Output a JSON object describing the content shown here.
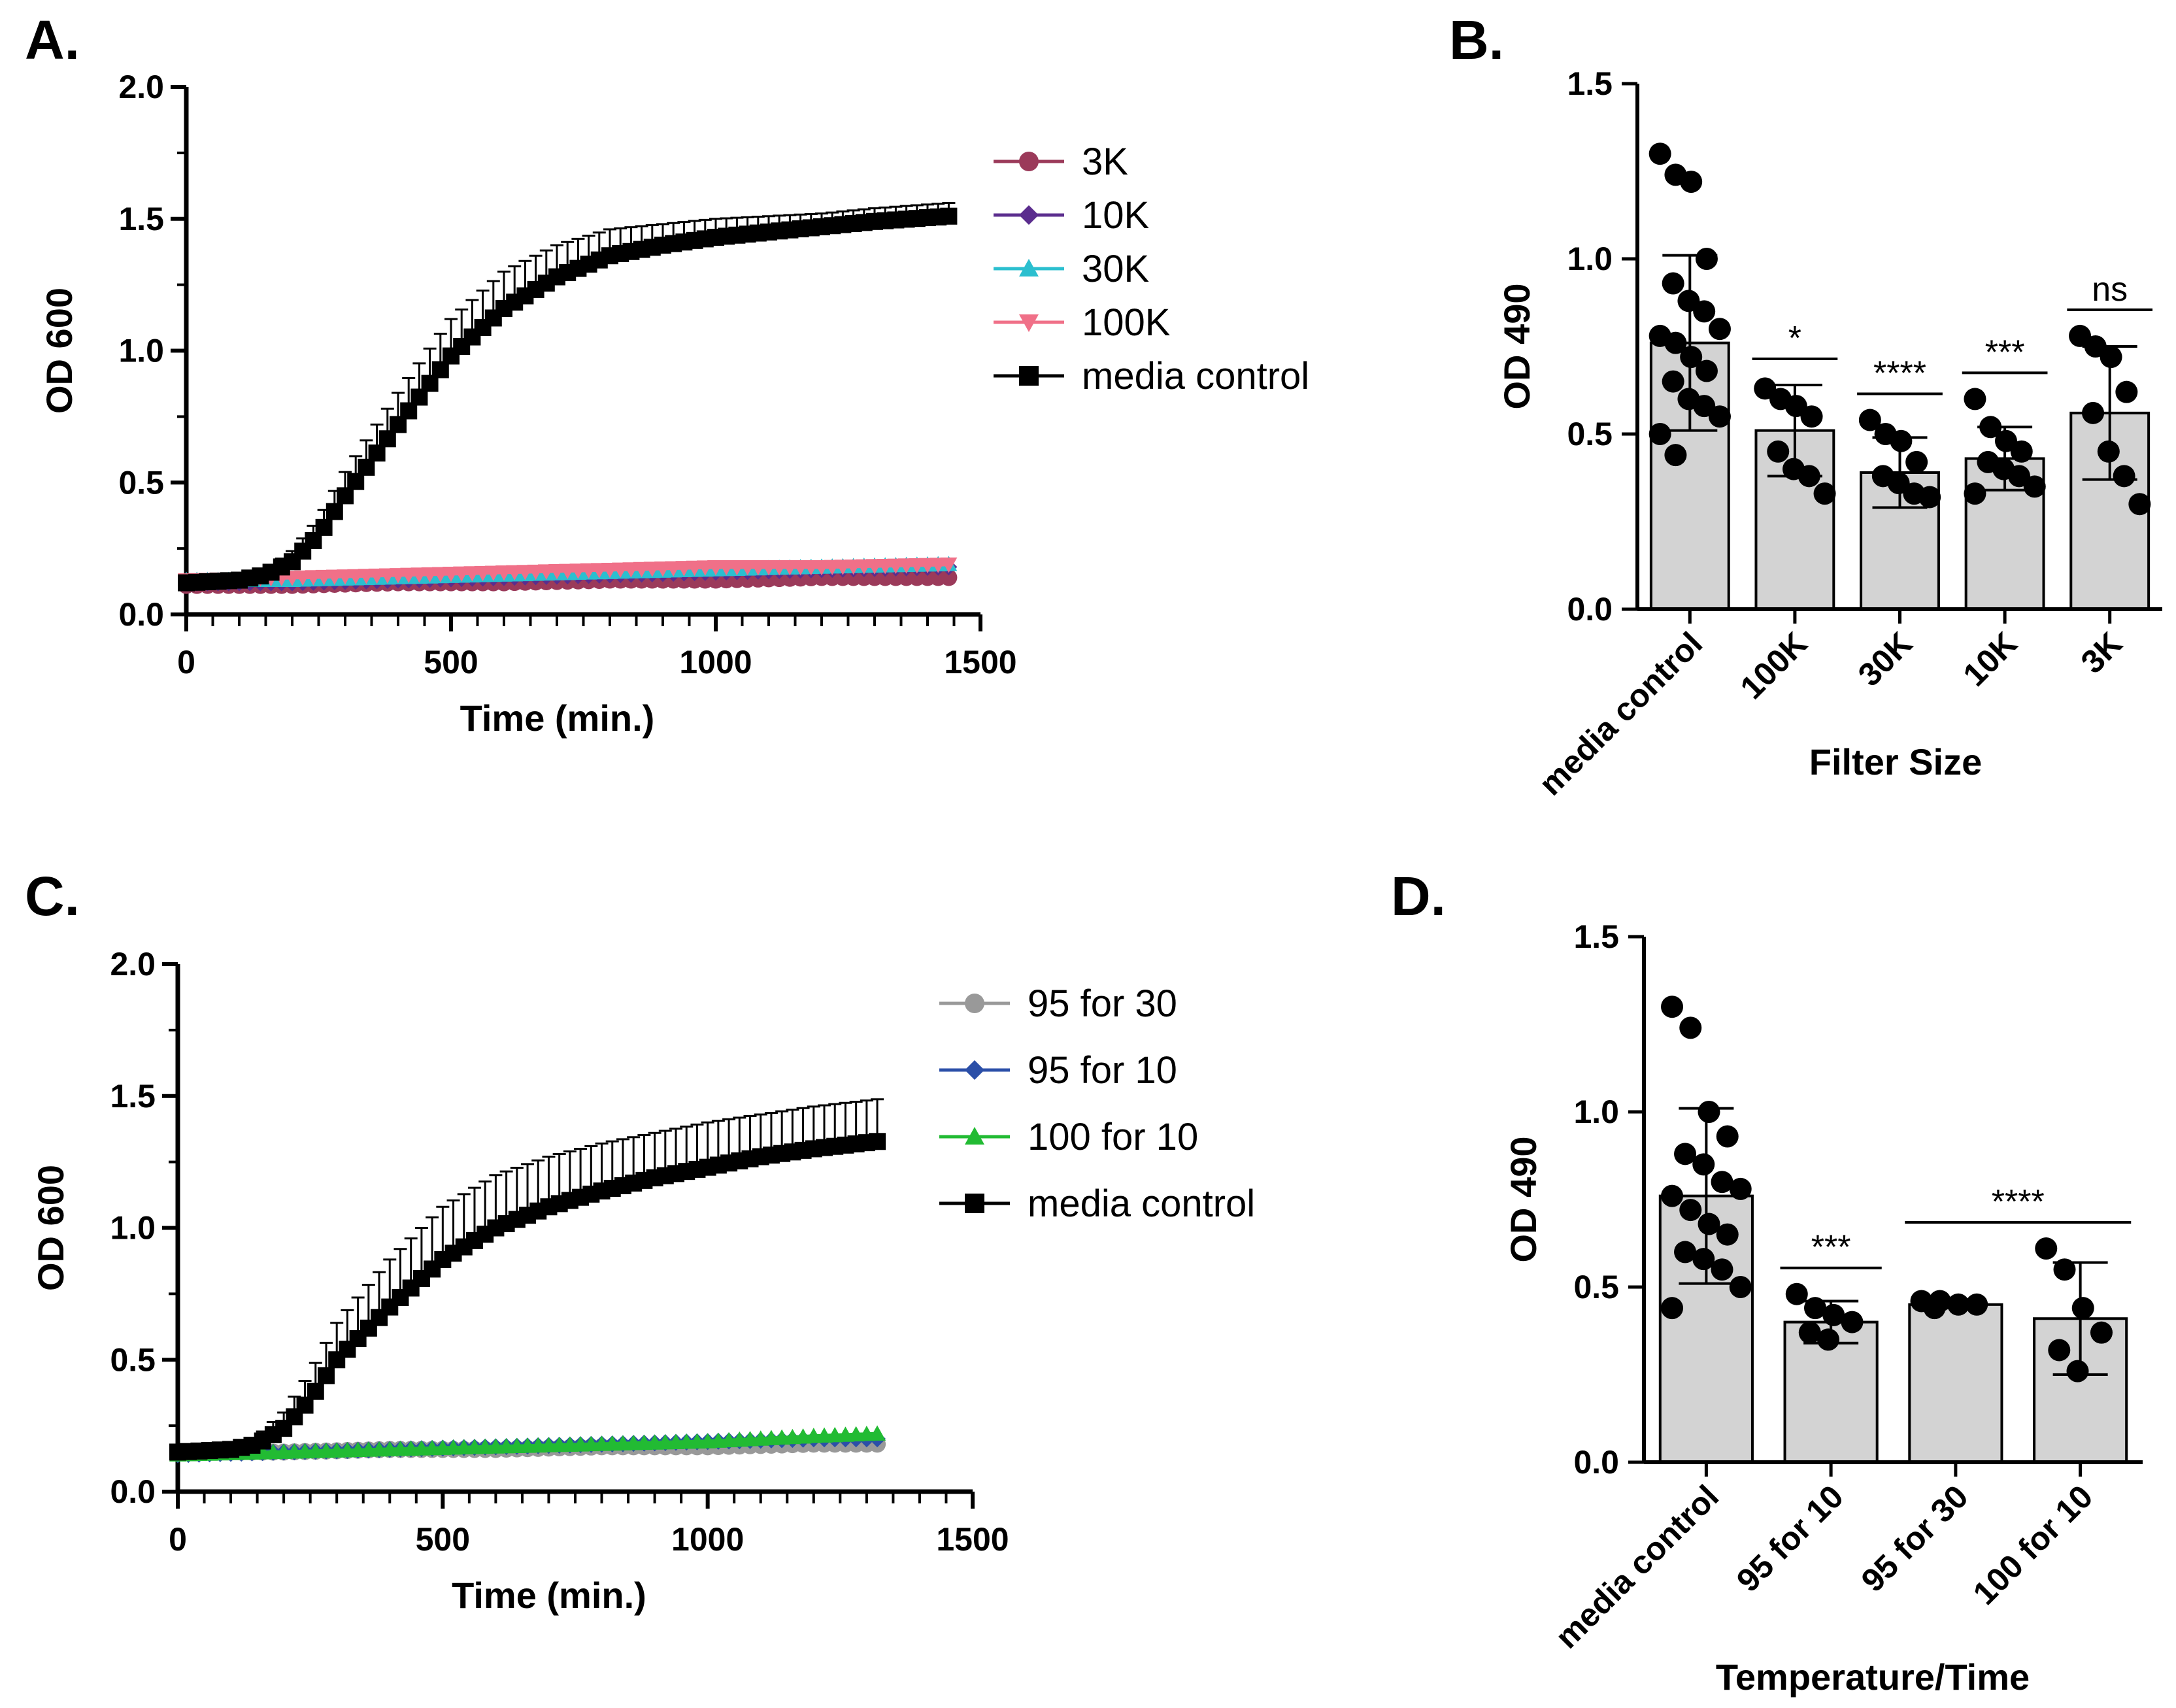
{
  "figure": {
    "panels": [
      "A.",
      "B.",
      "C.",
      "D."
    ]
  },
  "chart_data": [
    {
      "panel": "A.",
      "type": "line",
      "xlabel": "Time (min.)",
      "ylabel": "OD 600",
      "xlim": [
        0,
        1500
      ],
      "ylim": [
        0,
        2.0
      ],
      "xticks": [
        "0",
        "500",
        "1000",
        "1500"
      ],
      "yticks": [
        "0.0",
        "0.5",
        "1.0",
        "1.5",
        "2.0"
      ],
      "legend_position": "right",
      "series": [
        {
          "name": "3K",
          "color": "#9b3a5a",
          "marker": "circle",
          "x": [
            0,
            200,
            400,
            600,
            800,
            1000,
            1200,
            1440
          ],
          "values": [
            0.11,
            0.11,
            0.12,
            0.12,
            0.13,
            0.13,
            0.14,
            0.14
          ]
        },
        {
          "name": "10K",
          "color": "#5b2d8e",
          "marker": "diamond",
          "x": [
            0,
            200,
            400,
            600,
            800,
            1000,
            1200,
            1440
          ],
          "values": [
            0.12,
            0.12,
            0.13,
            0.14,
            0.15,
            0.16,
            0.17,
            0.18
          ]
        },
        {
          "name": "30K",
          "color": "#2bbfcf",
          "marker": "triangle-up",
          "x": [
            0,
            200,
            400,
            600,
            800,
            1000,
            1200,
            1440
          ],
          "values": [
            0.13,
            0.13,
            0.14,
            0.15,
            0.16,
            0.17,
            0.18,
            0.19
          ]
        },
        {
          "name": "100K",
          "color": "#f07088",
          "marker": "triangle-down",
          "x": [
            0,
            200,
            400,
            600,
            800,
            1000,
            1200,
            1440
          ],
          "values": [
            0.13,
            0.14,
            0.15,
            0.16,
            0.17,
            0.18,
            0.18,
            0.19
          ]
        },
        {
          "name": "media control",
          "color": "#000000",
          "marker": "square",
          "x": [
            0,
            100,
            150,
            200,
            250,
            300,
            400,
            500,
            600,
            700,
            800,
            900,
            1000,
            1100,
            1200,
            1300,
            1440
          ],
          "values": [
            0.12,
            0.13,
            0.15,
            0.2,
            0.3,
            0.45,
            0.72,
            0.98,
            1.16,
            1.28,
            1.36,
            1.4,
            1.43,
            1.45,
            1.47,
            1.49,
            1.51
          ],
          "error": [
            0.01,
            0.01,
            0.02,
            0.04,
            0.06,
            0.09,
            0.12,
            0.14,
            0.14,
            0.12,
            0.1,
            0.08,
            0.07,
            0.06,
            0.05,
            0.05,
            0.05
          ]
        }
      ]
    },
    {
      "panel": "B.",
      "type": "bar",
      "xlabel": "Filter Size",
      "ylabel": "OD 490",
      "ylim": [
        0,
        1.5
      ],
      "yticks": [
        "0.0",
        "0.5",
        "1.0",
        "1.5"
      ],
      "categories": [
        "media control",
        "100K",
        "30K",
        "10K",
        "3K"
      ],
      "values": [
        0.76,
        0.51,
        0.39,
        0.43,
        0.56
      ],
      "sd": [
        0.25,
        0.13,
        0.1,
        0.09,
        0.19
      ],
      "points": [
        [
          1.3,
          1.24,
          1.22,
          1.0,
          0.93,
          0.88,
          0.85,
          0.8,
          0.78,
          0.76,
          0.72,
          0.68,
          0.65,
          0.6,
          0.58,
          0.55,
          0.5,
          0.44
        ],
        [
          0.63,
          0.6,
          0.58,
          0.55,
          0.45,
          0.4,
          0.38,
          0.33
        ],
        [
          0.54,
          0.5,
          0.48,
          0.42,
          0.38,
          0.36,
          0.33,
          0.32
        ],
        [
          0.6,
          0.52,
          0.48,
          0.45,
          0.42,
          0.4,
          0.38,
          0.35,
          0.33
        ],
        [
          0.78,
          0.75,
          0.72,
          0.62,
          0.56,
          0.45,
          0.38,
          0.3
        ]
      ],
      "annotations": [
        {
          "label": "*",
          "from": 1,
          "to": 1
        },
        {
          "label": "****",
          "from": 2,
          "to": 2
        },
        {
          "label": "***",
          "from": 3,
          "to": 3
        },
        {
          "label": "ns",
          "from": 4,
          "to": 4
        }
      ]
    },
    {
      "panel": "C.",
      "type": "line",
      "xlabel": "Time (min.)",
      "ylabel": "OD 600",
      "xlim": [
        0,
        1500
      ],
      "ylim": [
        0,
        2.0
      ],
      "xticks": [
        "0",
        "500",
        "1000",
        "1500"
      ],
      "yticks": [
        "0.0",
        "0.5",
        "1.0",
        "1.5",
        "2.0"
      ],
      "legend_position": "right",
      "series": [
        {
          "name": "95 for 30",
          "color": "#999999",
          "marker": "circle",
          "x": [
            0,
            200,
            400,
            600,
            800,
            1000,
            1200,
            1330
          ],
          "values": [
            0.15,
            0.15,
            0.16,
            0.16,
            0.17,
            0.17,
            0.18,
            0.18
          ]
        },
        {
          "name": "95 for 10",
          "color": "#2b4fa8",
          "marker": "diamond",
          "x": [
            0,
            200,
            400,
            600,
            800,
            1000,
            1200,
            1330
          ],
          "values": [
            0.14,
            0.15,
            0.16,
            0.17,
            0.18,
            0.19,
            0.2,
            0.2
          ]
        },
        {
          "name": "100 for 10",
          "color": "#22bb33",
          "marker": "triangle-up",
          "x": [
            0,
            200,
            400,
            600,
            800,
            1000,
            1200,
            1330
          ],
          "values": [
            0.14,
            0.15,
            0.16,
            0.17,
            0.18,
            0.19,
            0.21,
            0.22
          ]
        },
        {
          "name": "media control",
          "color": "#000000",
          "marker": "square",
          "x": [
            0,
            100,
            150,
            200,
            250,
            300,
            400,
            500,
            600,
            700,
            800,
            900,
            1000,
            1100,
            1200,
            1330
          ],
          "values": [
            0.15,
            0.16,
            0.18,
            0.24,
            0.35,
            0.5,
            0.7,
            0.88,
            1.0,
            1.08,
            1.14,
            1.19,
            1.23,
            1.27,
            1.3,
            1.33
          ],
          "error": [
            0.01,
            0.01,
            0.03,
            0.06,
            0.1,
            0.14,
            0.18,
            0.2,
            0.2,
            0.19,
            0.18,
            0.17,
            0.17,
            0.16,
            0.16,
            0.16
          ]
        }
      ]
    },
    {
      "panel": "D.",
      "type": "bar",
      "xlabel": "Temperature/Time",
      "ylabel": "OD 490",
      "ylim": [
        0,
        1.5
      ],
      "yticks": [
        "0.0",
        "0.5",
        "1.0",
        "1.5"
      ],
      "categories": [
        "media control",
        "95 for 10",
        "95 for 30",
        "100 for 10"
      ],
      "values": [
        0.76,
        0.4,
        0.45,
        0.41
      ],
      "sd": [
        0.25,
        0.06,
        0.01,
        0.16
      ],
      "points": [
        [
          1.3,
          1.24,
          1.0,
          0.93,
          0.88,
          0.85,
          0.8,
          0.78,
          0.76,
          0.72,
          0.68,
          0.65,
          0.6,
          0.58,
          0.55,
          0.5,
          0.44
        ],
        [
          0.48,
          0.44,
          0.42,
          0.4,
          0.37,
          0.35
        ],
        [
          0.46,
          0.46,
          0.45,
          0.45,
          0.44
        ],
        [
          0.61,
          0.55,
          0.44,
          0.37,
          0.32,
          0.26
        ]
      ],
      "annotations": [
        {
          "label": "***",
          "from": 1,
          "to": 1
        },
        {
          "label": "****",
          "from": 2,
          "to": 3
        }
      ]
    }
  ]
}
